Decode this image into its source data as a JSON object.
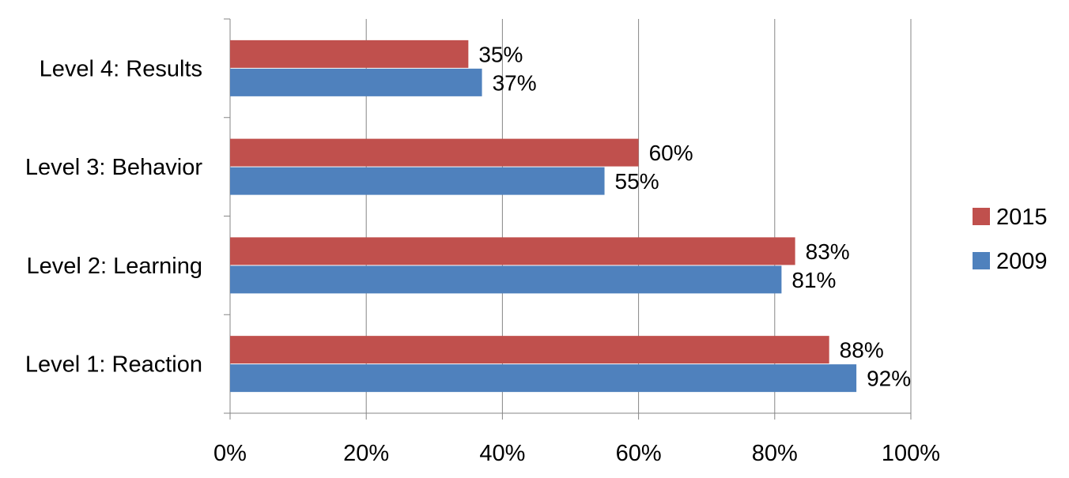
{
  "chart_data": {
    "type": "bar",
    "orientation": "horizontal",
    "categories": [
      "Level 4: Results",
      "Level 3: Behavior",
      "Level 2: Learning",
      "Level 1: Reaction"
    ],
    "series": [
      {
        "name": "2015",
        "color": "#c0504d",
        "values": [
          35,
          60,
          83,
          88
        ],
        "labels": [
          "35%",
          "60%",
          "83%",
          "88%"
        ]
      },
      {
        "name": "2009",
        "color": "#4f81bd",
        "values": [
          37,
          55,
          81,
          92
        ],
        "labels": [
          "37%",
          "55%",
          "81%",
          "92%"
        ]
      }
    ],
    "xlim": [
      0,
      100
    ],
    "xticks": [
      0,
      20,
      40,
      60,
      80,
      100
    ],
    "xtick_labels": [
      "0%",
      "20%",
      "40%",
      "60%",
      "80%",
      "100%"
    ],
    "grid": true,
    "gridline_color": "#868686",
    "legend_position": "right"
  }
}
